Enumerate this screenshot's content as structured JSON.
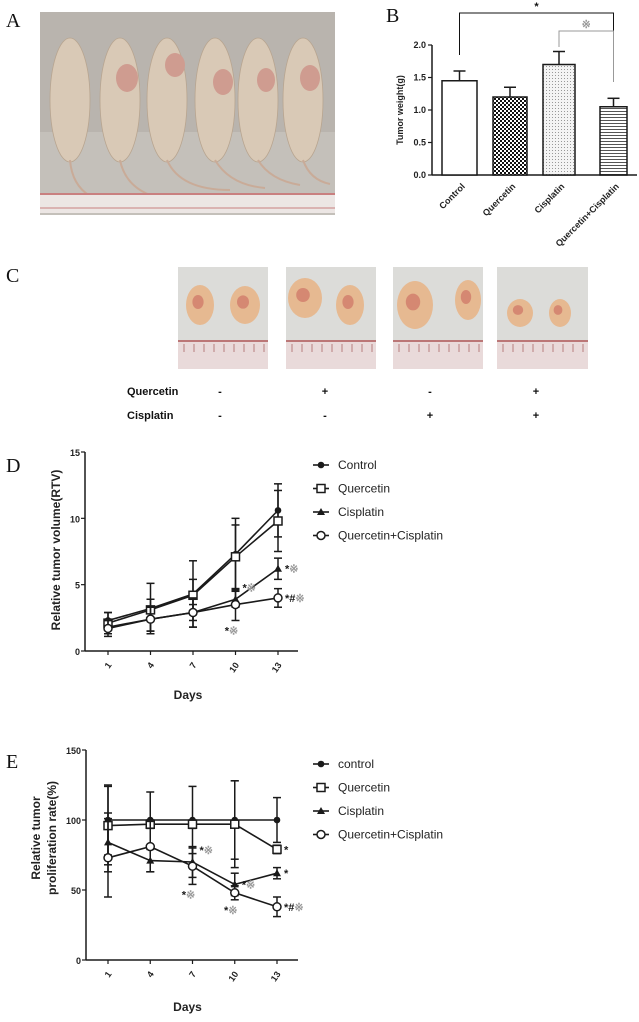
{
  "panel_labels": {
    "a": "A",
    "b": "B",
    "c": "C",
    "d": "D",
    "e": "E"
  },
  "panel_c": {
    "row_labels": [
      "Quercetin",
      "Cisplatin"
    ],
    "columns": [
      {
        "quercetin": "-",
        "cisplatin": "-"
      },
      {
        "quercetin": "+",
        "cisplatin": "-"
      },
      {
        "quercetin": "-",
        "cisplatin": "+"
      },
      {
        "quercetin": "+",
        "cisplatin": "+"
      }
    ]
  },
  "chart_data": [
    {
      "panel": "B",
      "type": "bar",
      "categories": [
        "Control",
        "Quercetin",
        "Cisplatin",
        "Quercetin+Cisplatin"
      ],
      "values": [
        1.45,
        1.2,
        1.7,
        1.05
      ],
      "errors": [
        0.15,
        0.15,
        0.2,
        0.13
      ],
      "patterns": [
        "white",
        "checker",
        "dots",
        "horizontal-lines"
      ],
      "ylabel": "Tumor weight(g)",
      "ylim": [
        0,
        2.0
      ],
      "yticks": [
        "0.0",
        "0.5",
        "1.0",
        "1.5",
        "2.0"
      ],
      "significance": [
        {
          "from": "Control",
          "to": "Quercetin+Cisplatin",
          "mark": "*",
          "color": "#111111"
        },
        {
          "from": "Cisplatin",
          "to": "Quercetin+Cisplatin",
          "mark": "※",
          "color": "#999999"
        }
      ]
    },
    {
      "panel": "D",
      "type": "line",
      "x": [
        1,
        4,
        7,
        10,
        13
      ],
      "xticks": [
        "1",
        "4",
        "7",
        "10",
        "13"
      ],
      "xlabel": "Days",
      "ylabel": "Relative tumor volume(RTV)",
      "ylim": [
        0,
        15
      ],
      "yticks": [
        "0",
        "5",
        "10",
        "15"
      ],
      "legend_position": "right",
      "series": [
        {
          "name": "Control",
          "marker": "filled-circle",
          "values": [
            2.3,
            3.2,
            4.3,
            7.3,
            10.6
          ],
          "errors": [
            0.6,
            1.9,
            2.5,
            2.7,
            2.0
          ]
        },
        {
          "name": "Quercetin",
          "marker": "open-square",
          "values": [
            2.1,
            3.1,
            4.2,
            7.1,
            9.8
          ],
          "errors": [
            0.8,
            0.8,
            1.2,
            2.4,
            2.3
          ]
        },
        {
          "name": "Cisplatin",
          "marker": "filled-triangle",
          "values": [
            1.8,
            2.4,
            2.9,
            3.9,
            6.2
          ],
          "errors": [
            0.5,
            0.9,
            0.6,
            0.6,
            0.8
          ]
        },
        {
          "name": "Quercetin+Cisplatin",
          "marker": "open-circle",
          "values": [
            1.7,
            2.4,
            2.9,
            3.5,
            4.0
          ],
          "errors": [
            0.6,
            0.9,
            1.1,
            1.2,
            0.7
          ]
        }
      ],
      "annotations": [
        {
          "series": 2,
          "day": 10,
          "text": "*※",
          "placement": "above-right"
        },
        {
          "series": 3,
          "day": 10,
          "text": "*※",
          "placement": "below"
        },
        {
          "series": 2,
          "day": 13,
          "text": "*※",
          "placement": "right"
        },
        {
          "series": 3,
          "day": 13,
          "text": "*#※",
          "placement": "right"
        }
      ]
    },
    {
      "panel": "E",
      "type": "line",
      "x": [
        1,
        4,
        7,
        10,
        13
      ],
      "xticks": [
        "1",
        "4",
        "7",
        "10",
        "13"
      ],
      "xlabel": "Days",
      "ylabel": [
        "Relative tumor",
        "proliferation rate(%)"
      ],
      "ylim": [
        0,
        150
      ],
      "yticks": [
        "0",
        "50",
        "100",
        "150"
      ],
      "legend_position": "right",
      "series": [
        {
          "name": "control",
          "marker": "filled-circle",
          "values": [
            100,
            100,
            100,
            100,
            100
          ],
          "errors": [
            25,
            20,
            24,
            28,
            16
          ]
        },
        {
          "name": "Quercetin",
          "marker": "open-square",
          "values": [
            96,
            97,
            97,
            97,
            79
          ],
          "errors": [
            28,
            3,
            3,
            31,
            3
          ]
        },
        {
          "name": "Cisplatin",
          "marker": "filled-triangle",
          "values": [
            84,
            71,
            70,
            54,
            62
          ],
          "errors": [
            21,
            8,
            11,
            8,
            4
          ]
        },
        {
          "name": "Quercetin+Cisplatin",
          "marker": "open-circle",
          "values": [
            73,
            81,
            67,
            48,
            38
          ],
          "errors": [
            28,
            18,
            13,
            5,
            7
          ]
        }
      ],
      "annotations": [
        {
          "series": 2,
          "day": 7,
          "text": "*※",
          "placement": "above-right"
        },
        {
          "series": 3,
          "day": 7,
          "text": "*※",
          "placement": "below"
        },
        {
          "series": 2,
          "day": 10,
          "text": "*※",
          "placement": "right"
        },
        {
          "series": 3,
          "day": 10,
          "text": "*※",
          "placement": "below"
        },
        {
          "series": 1,
          "day": 13,
          "text": "*",
          "placement": "right"
        },
        {
          "series": 2,
          "day": 13,
          "text": "*",
          "placement": "right"
        },
        {
          "series": 3,
          "day": 13,
          "text": "*#※",
          "placement": "right"
        }
      ]
    }
  ],
  "colors": {
    "ink": "#1a1a1a",
    "secondary_mark": "#999999"
  }
}
